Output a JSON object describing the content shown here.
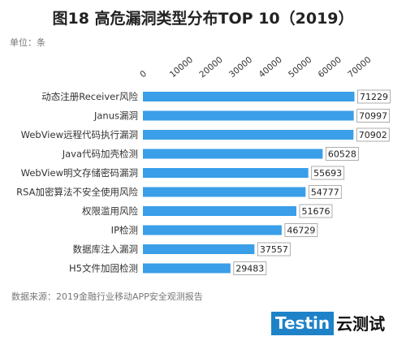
{
  "source": "数据来源：2019金融行业移动APP安全观测报告",
  "logo": {
    "brand": "Testin",
    "brand_cn": "云测试"
  },
  "colors": {
    "bar": "#3a9ee8",
    "value_box_border": "#9a9a9a",
    "logo_bg": "#1e82c8"
  },
  "chart_data": {
    "type": "bar",
    "orientation": "horizontal",
    "title": "图18 高危漏洞类型分布TOP 10（2019）",
    "unit": "单位：条",
    "categories": [
      "动态注册Receiver风险",
      "Janus漏洞",
      "WebView远程代码执行漏洞",
      "Java代码加壳检测",
      "WebView明文存储密码漏洞",
      "RSA加密算法不安全使用风险",
      "权限滥用风险",
      "IP检测",
      "数据库注入漏洞",
      "H5文件加固检测"
    ],
    "values": [
      71229,
      70997,
      70902,
      60528,
      55693,
      54777,
      51676,
      46729,
      37557,
      29483
    ],
    "value_labels": [
      "71229",
      "70997",
      "70902",
      "60528",
      "55693",
      "54777",
      "51676",
      "46729",
      "37557",
      "29483"
    ],
    "x_ticks": [
      0,
      10000,
      20000,
      30000,
      40000,
      50000,
      60000,
      70000
    ],
    "x_tick_labels": [
      "0",
      "10000",
      "20000",
      "30000",
      "40000",
      "50000",
      "60000",
      "70000"
    ],
    "xlim": [
      0,
      70000
    ],
    "x_axis_position": "top",
    "grid": false,
    "legend": "none"
  }
}
